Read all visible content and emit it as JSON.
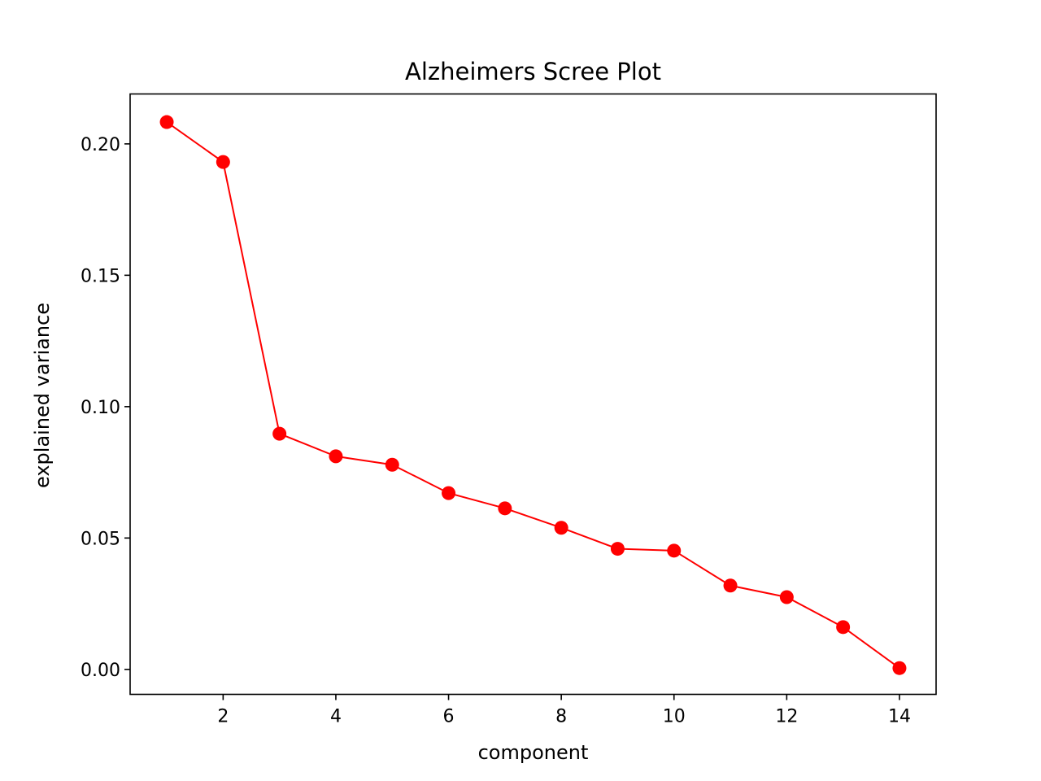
{
  "chart_data": {
    "type": "line",
    "title": "Alzheimers Scree Plot",
    "xlabel": "component",
    "ylabel": "explained variance",
    "xlim": [
      0.35,
      14.65
    ],
    "ylim": [
      -0.0095,
      0.219
    ],
    "xticks": [
      2,
      4,
      6,
      8,
      10,
      12,
      14
    ],
    "xtick_labels": [
      "2",
      "4",
      "6",
      "8",
      "10",
      "12",
      "14"
    ],
    "yticks": [
      0.0,
      0.05,
      0.1,
      0.15,
      0.2
    ],
    "ytick_labels": [
      "0.00",
      "0.05",
      "0.10",
      "0.15",
      "0.20"
    ],
    "grid": false,
    "legend": "none",
    "series": [
      {
        "color": "#ff0000",
        "marker": "circle",
        "x": [
          1,
          2,
          3,
          4,
          5,
          6,
          7,
          8,
          9,
          10,
          11,
          12,
          13,
          14
        ],
        "y": [
          0.2083,
          0.1931,
          0.0897,
          0.0811,
          0.0779,
          0.0671,
          0.0613,
          0.0539,
          0.0459,
          0.0452,
          0.0319,
          0.0275,
          0.0161,
          0.0005
        ]
      }
    ]
  }
}
